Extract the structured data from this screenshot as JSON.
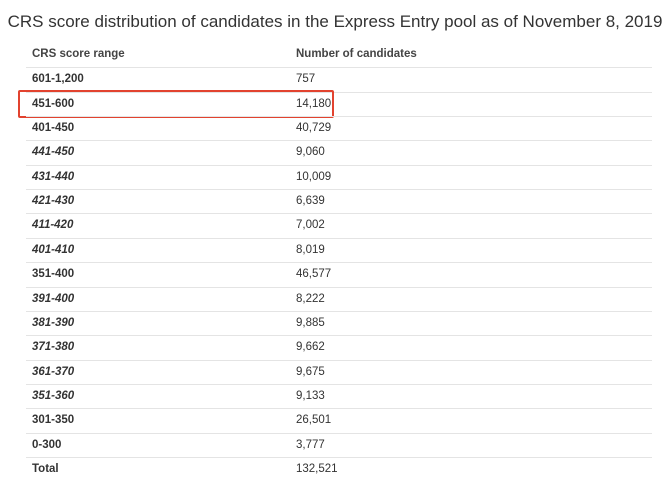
{
  "title": "CRS score distribution of candidates in the Express Entry pool as of November 8, 2019",
  "table": {
    "columns": [
      "CRS score range",
      "Number of candidates"
    ],
    "rows": [
      {
        "range": "601-1,200",
        "count": "757"
      },
      {
        "range": "451-600",
        "count": "14,180",
        "highlighted": true
      },
      {
        "range": "401-450",
        "count": "40,729",
        "breakdown": [
          {
            "range": "441-450",
            "count": "9,060"
          },
          {
            "range": "431-440",
            "count": "10,009"
          },
          {
            "range": "421-430",
            "count": "6,639"
          },
          {
            "range": "411-420",
            "count": "7,002"
          },
          {
            "range": "401-410",
            "count": "8,019"
          }
        ]
      },
      {
        "range": "351-400",
        "count": "46,577",
        "breakdown": [
          {
            "range": "391-400",
            "count": "8,222"
          },
          {
            "range": "381-390",
            "count": "9,885"
          },
          {
            "range": "371-380",
            "count": "9,662"
          },
          {
            "range": "361-370",
            "count": "9,675"
          },
          {
            "range": "351-360",
            "count": "9,133"
          }
        ]
      },
      {
        "range": "301-350",
        "count": "26,501"
      },
      {
        "range": "0-300",
        "count": "3,777"
      }
    ],
    "total": {
      "range": "Total",
      "count": "132,521"
    }
  }
}
